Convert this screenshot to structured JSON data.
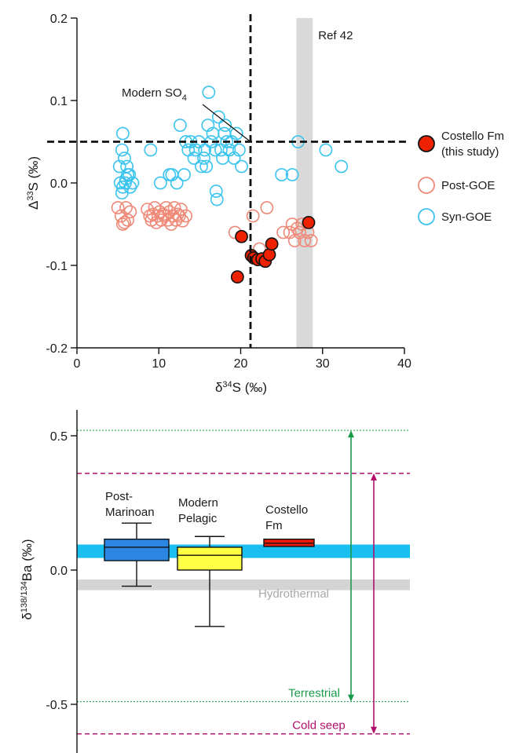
{
  "chart_data": [
    {
      "type": "scatter",
      "xlim": [
        0,
        40
      ],
      "ylim": [
        -0.2,
        0.2
      ],
      "x_ticks": [
        "0",
        "10",
        "20",
        "30",
        "40"
      ],
      "y_ticks": [
        "0.2",
        "0.1",
        "0.0",
        "-0.1",
        "-0.2"
      ],
      "x_tick_values": [
        0,
        10,
        20,
        30,
        40
      ],
      "y_tick_values": [
        0.2,
        0.1,
        0.0,
        -0.1,
        -0.2
      ],
      "xlabel": {
        "prefix": "δ",
        "sup": "34",
        "rest": "S (‰)"
      },
      "ylabel": {
        "prefix": "Δ",
        "sup": "33",
        "rest": "S (‰)"
      },
      "reference_band": {
        "label": "Ref 42",
        "x_range": [
          26.8,
          28.8
        ],
        "color": "#d9d9d9"
      },
      "reference_lines": {
        "x": 21.2,
        "y": 0.05
      },
      "modern_so4_label": {
        "text": "Modern SO",
        "sub": "4",
        "point": [
          21.2,
          0.05
        ]
      },
      "legend_position": "right",
      "series": [
        {
          "name": "Costello Fm",
          "name_line2": "(this study)",
          "marker": "filled",
          "color": "#ee2200",
          "stroke": "#111111",
          "points": [
            [
              19.6,
              -0.114
            ],
            [
              20.1,
              -0.065
            ],
            [
              21.3,
              -0.088
            ],
            [
              21.6,
              -0.091
            ],
            [
              22.1,
              -0.093
            ],
            [
              22.6,
              -0.092
            ],
            [
              23.0,
              -0.095
            ],
            [
              23.5,
              -0.087
            ],
            [
              23.8,
              -0.074
            ],
            [
              28.3,
              -0.048
            ]
          ]
        },
        {
          "name": "Post-GOE",
          "marker": "open",
          "color": "#ef8a78",
          "points": [
            [
              5.0,
              -0.03
            ],
            [
              5.4,
              -0.04
            ],
            [
              5.6,
              -0.05
            ],
            [
              5.8,
              -0.048
            ],
            [
              6.0,
              -0.03
            ],
            [
              6.2,
              -0.045
            ],
            [
              6.5,
              -0.035
            ],
            [
              8.6,
              -0.032
            ],
            [
              8.9,
              -0.04
            ],
            [
              9.1,
              -0.045
            ],
            [
              9.3,
              -0.038
            ],
            [
              9.5,
              -0.03
            ],
            [
              9.7,
              -0.048
            ],
            [
              9.9,
              -0.04
            ],
            [
              10.1,
              -0.035
            ],
            [
              10.3,
              -0.045
            ],
            [
              10.5,
              -0.038
            ],
            [
              10.7,
              -0.04
            ],
            [
              10.9,
              -0.03
            ],
            [
              11.1,
              -0.045
            ],
            [
              11.3,
              -0.035
            ],
            [
              11.5,
              -0.05
            ],
            [
              11.7,
              -0.04
            ],
            [
              11.9,
              -0.03
            ],
            [
              12.1,
              -0.045
            ],
            [
              12.3,
              -0.038
            ],
            [
              12.5,
              -0.04
            ],
            [
              12.7,
              -0.032
            ],
            [
              12.9,
              -0.046
            ],
            [
              13.3,
              -0.04
            ],
            [
              10.7,
              -0.04
            ],
            [
              19.3,
              -0.06
            ],
            [
              21.5,
              -0.04
            ],
            [
              22.3,
              -0.08
            ],
            [
              23.2,
              -0.03
            ],
            [
              25.2,
              -0.06
            ],
            [
              26.0,
              -0.06
            ],
            [
              26.3,
              -0.05
            ],
            [
              26.6,
              -0.07
            ],
            [
              26.9,
              -0.055
            ],
            [
              27.2,
              -0.06
            ],
            [
              27.5,
              -0.05
            ],
            [
              27.8,
              -0.07
            ],
            [
              28.2,
              -0.06
            ],
            [
              28.6,
              -0.07
            ]
          ]
        },
        {
          "name": "Syn-GOE",
          "marker": "open",
          "color": "#3cc4ef",
          "points": [
            [
              5.2,
              0.02
            ],
            [
              5.5,
              0.04
            ],
            [
              5.6,
              0.06
            ],
            [
              5.8,
              0.03
            ],
            [
              6.1,
              0.02
            ],
            [
              5.3,
              0.0
            ],
            [
              5.6,
              -0.005
            ],
            [
              5.9,
              0.0
            ],
            [
              6.2,
              0.01
            ],
            [
              6.5,
              -0.005
            ],
            [
              6.8,
              0.0
            ],
            [
              5.5,
              -0.012
            ],
            [
              6.0,
              0.005
            ],
            [
              6.4,
              0.01
            ],
            [
              9.0,
              0.04
            ],
            [
              10.2,
              0.0
            ],
            [
              11.3,
              0.01
            ],
            [
              11.6,
              0.01
            ],
            [
              12.2,
              0.0
            ],
            [
              12.6,
              0.07
            ],
            [
              13.1,
              0.01
            ],
            [
              13.6,
              0.04
            ],
            [
              13.9,
              0.05
            ],
            [
              14.3,
              0.03
            ],
            [
              14.5,
              0.04
            ],
            [
              14.9,
              0.05
            ],
            [
              15.2,
              0.02
            ],
            [
              15.5,
              0.03
            ],
            [
              15.8,
              0.02
            ],
            [
              16.0,
              0.07
            ],
            [
              16.1,
              0.11
            ],
            [
              16.4,
              0.05
            ],
            [
              16.9,
              0.04
            ],
            [
              17.0,
              -0.01
            ],
            [
              17.1,
              -0.02
            ],
            [
              17.6,
              0.04
            ],
            [
              17.8,
              0.03
            ],
            [
              18.0,
              0.06
            ],
            [
              18.3,
              0.05
            ],
            [
              18.6,
              0.04
            ],
            [
              18.9,
              0.05
            ],
            [
              19.2,
              0.03
            ],
            [
              19.5,
              0.06
            ],
            [
              19.8,
              0.04
            ],
            [
              20.1,
              0.02
            ],
            [
              17.3,
              0.08
            ],
            [
              18.1,
              0.07
            ],
            [
              15.6,
              0.04
            ],
            [
              16.6,
              0.06
            ],
            [
              13.3,
              0.05
            ],
            [
              25.0,
              0.01
            ],
            [
              26.3,
              0.01
            ],
            [
              27.0,
              0.05
            ],
            [
              30.4,
              0.04
            ],
            [
              32.3,
              0.02
            ]
          ]
        }
      ]
    },
    {
      "type": "box",
      "ylim": [
        -0.62,
        0.6
      ],
      "y_ticks": [
        "0.5",
        "0.0",
        "-0.5"
      ],
      "y_tick_values": [
        0.5,
        0.0,
        -0.5
      ],
      "ylabel": {
        "prefix": "δ",
        "sup": "138/134",
        "rest": "Ba (‰)"
      },
      "bands": [
        {
          "name": "",
          "range": [
            0.045,
            0.095
          ],
          "color": "#19bfef"
        },
        {
          "name": "Hydrothermal",
          "range": [
            -0.075,
            -0.035
          ],
          "color": "#d4d4d4",
          "label_color": "#a8a8a8"
        }
      ],
      "lines": [
        {
          "name": "",
          "y": 0.52,
          "color": "#1a9a4a",
          "style": "dotted"
        },
        {
          "name": "Terrestrial",
          "y": -0.49,
          "color": "#1a9a4a",
          "style": "dotted"
        },
        {
          "name": "",
          "y": 0.36,
          "color": "#b0106a",
          "style": "dashed"
        },
        {
          "name": "Cold seep",
          "y": -0.61,
          "color": "#b0106a",
          "style": "dashed"
        }
      ],
      "ranges": [
        {
          "name": "Terrestrial",
          "from": 0.52,
          "to": -0.49,
          "color": "#1a9a4a"
        },
        {
          "name": "Cold seep",
          "from": 0.36,
          "to": -0.61,
          "color": "#b0106a"
        }
      ],
      "boxes": [
        {
          "name_lines": [
            "Post-",
            "Marinoan"
          ],
          "color": "#2a86e2",
          "min": -0.06,
          "q1": 0.035,
          "median": 0.085,
          "q3": 0.115,
          "max": 0.175
        },
        {
          "name_lines": [
            "Modern",
            "Pelagic"
          ],
          "color": "#ffff44",
          "min": -0.21,
          "q1": 0.0,
          "median": 0.055,
          "q3": 0.085,
          "max": 0.125
        },
        {
          "name_lines": [
            "Costello",
            "Fm"
          ],
          "color": "#ee1a0a",
          "min": null,
          "q1": 0.088,
          "median": 0.1,
          "q3": 0.115,
          "max": null
        }
      ]
    }
  ]
}
